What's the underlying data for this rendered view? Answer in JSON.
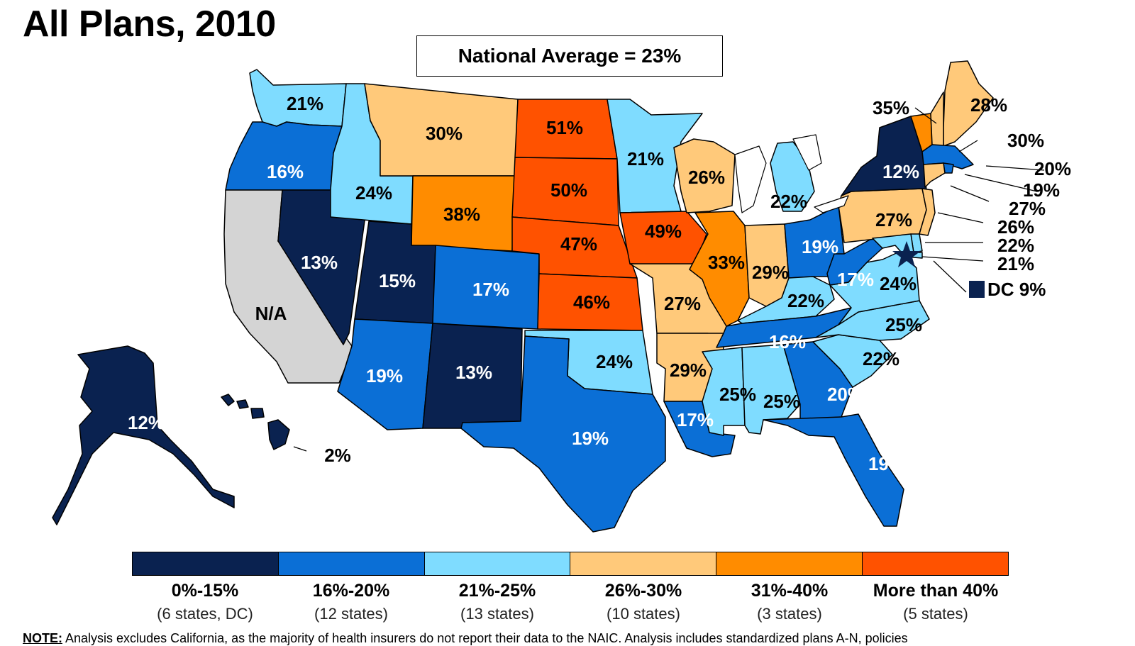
{
  "title": "All Plans, 2010",
  "national_average": "National Average = 23%",
  "colors": {
    "c0_15": "#0a2250",
    "c16_20": "#0b6fd6",
    "c21_25": "#7fdcff",
    "c26_30": "#ffc97a",
    "c31_40": "#ff8c00",
    "c40p": "#ff5200",
    "na": "#d4d4d4"
  },
  "legend": [
    {
      "range": "0%-15%",
      "count": "(6 states, DC)",
      "color": "#0a2250"
    },
    {
      "range": "16%-20%",
      "count": "(12 states)",
      "color": "#0b6fd6"
    },
    {
      "range": "21%-25%",
      "count": "(13 states)",
      "color": "#7fdcff"
    },
    {
      "range": "26%-30%",
      "count": "(10 states)",
      "color": "#ffc97a"
    },
    {
      "range": "31%-40%",
      "count": "(3 states)",
      "color": "#ff8c00"
    },
    {
      "range": "More than 40%",
      "count": "(5 states)",
      "color": "#ff5200"
    }
  ],
  "states": {
    "WA": "21%",
    "OR": "16%",
    "CA": "N/A",
    "NV": "13%",
    "ID": "24%",
    "MT": "30%",
    "WY": "38%",
    "UT": "15%",
    "CO": "17%",
    "AZ": "19%",
    "NM": "13%",
    "ND": "51%",
    "SD": "50%",
    "NE": "47%",
    "KS": "46%",
    "OK": "24%",
    "TX": "19%",
    "MN": "21%",
    "IA": "49%",
    "MO": "27%",
    "AR": "29%",
    "LA": "17%",
    "WI": "26%",
    "IL": "33%",
    "MI": "22%",
    "IN": "29%",
    "OH": "19%",
    "KY": "22%",
    "TN": "16%",
    "MS": "25%",
    "AL": "25%",
    "GA": "20%",
    "FL": "19%",
    "SC": "22%",
    "NC": "25%",
    "VA": "24%",
    "WV": "17%",
    "PA": "27%",
    "NY": "12%",
    "ME": "28%",
    "VT": "35%",
    "NH": "30%",
    "MA": "20%",
    "RI": "19%",
    "CT": "27%",
    "NJ": "26%",
    "DE": "22%",
    "MD": "21%",
    "DC": "DC 9%",
    "AK": "12%",
    "HI": "2%"
  },
  "note": {
    "label": "NOTE:",
    "text": "Analysis excludes California, as the majority of health insurers do not report their data to the NAIC. Analysis includes standardized plans A-N, policies"
  }
}
